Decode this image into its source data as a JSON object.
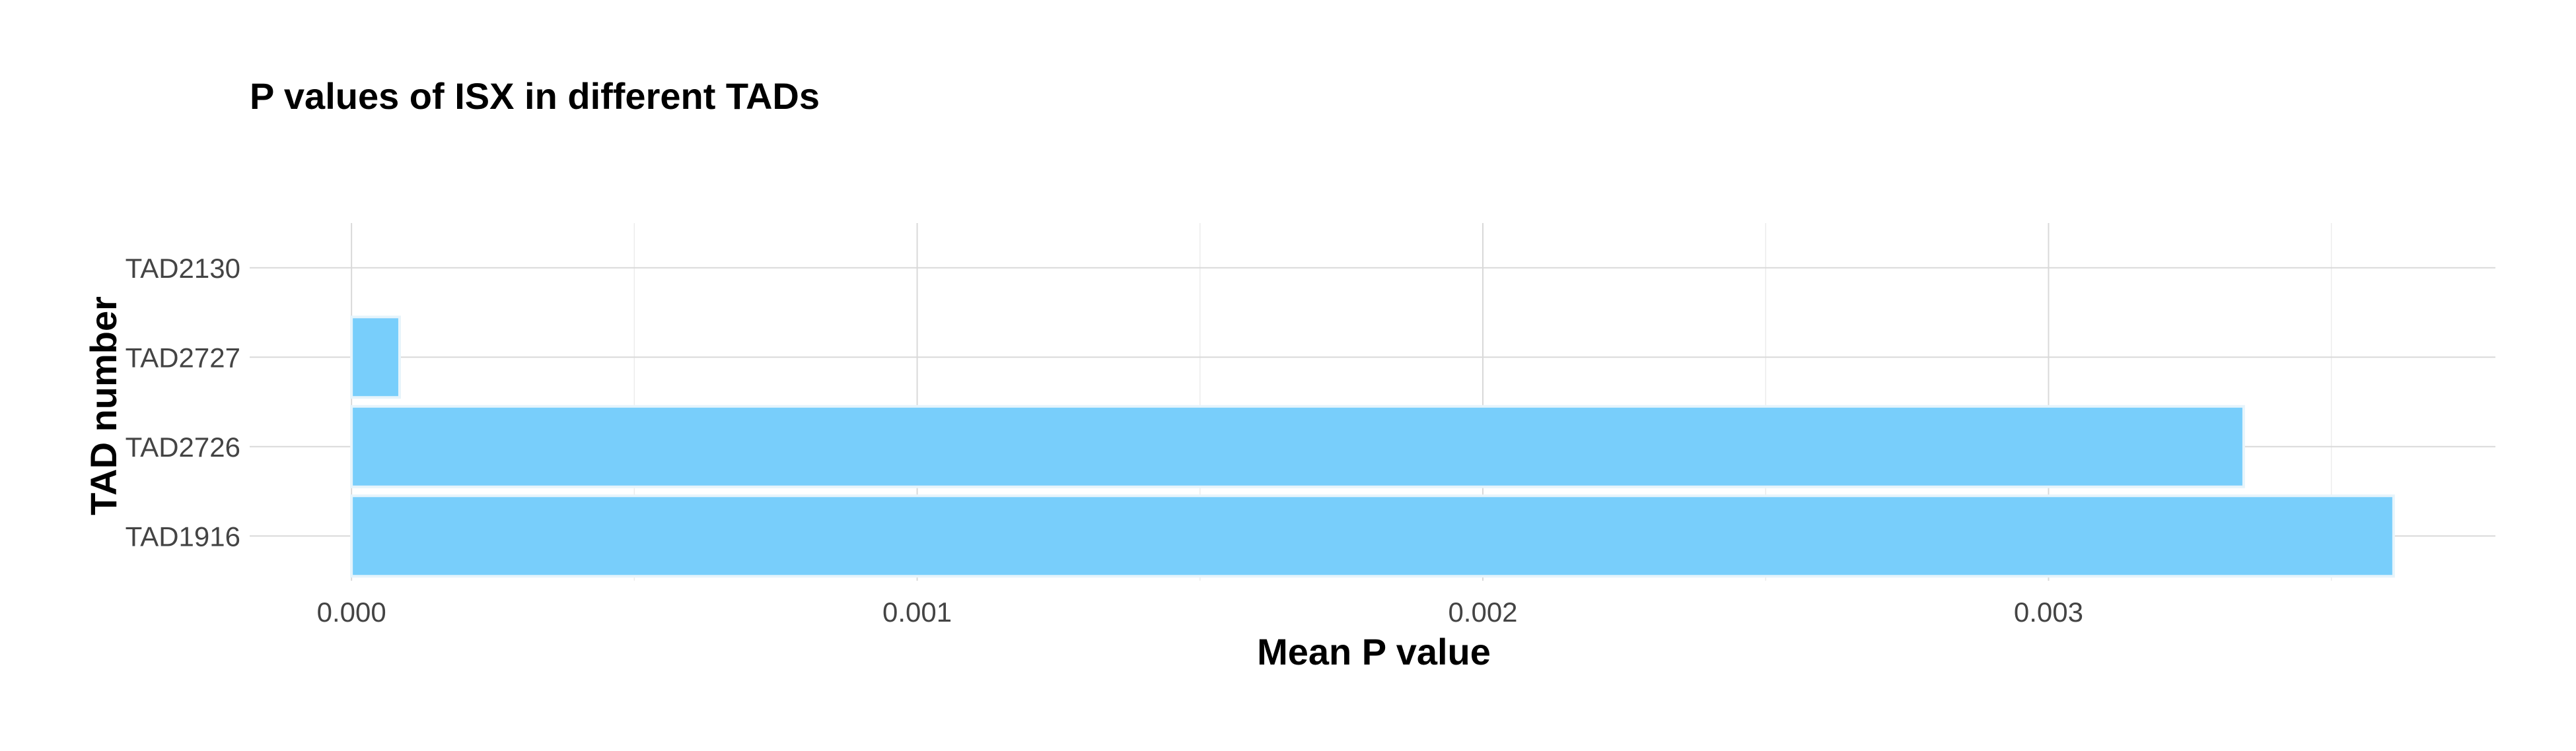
{
  "chart_data": {
    "type": "bar",
    "orientation": "horizontal",
    "title": "P values of ISX in different TADs",
    "xlabel": "Mean P value",
    "ylabel": "TAD number",
    "categories": [
      "TAD1916",
      "TAD2726",
      "TAD2727",
      "TAD2130"
    ],
    "values": [
      0.00361,
      0.003345,
      8.5e-05,
      0.0
    ],
    "xlim": [
      -0.00018,
      0.00379
    ],
    "xticks": [
      0.0,
      0.001,
      0.002,
      0.003
    ],
    "xtick_labels": [
      "0.000",
      "0.001",
      "0.002",
      "0.003"
    ],
    "grid": true,
    "legend": "none",
    "bar_color": "#75CDFB"
  }
}
